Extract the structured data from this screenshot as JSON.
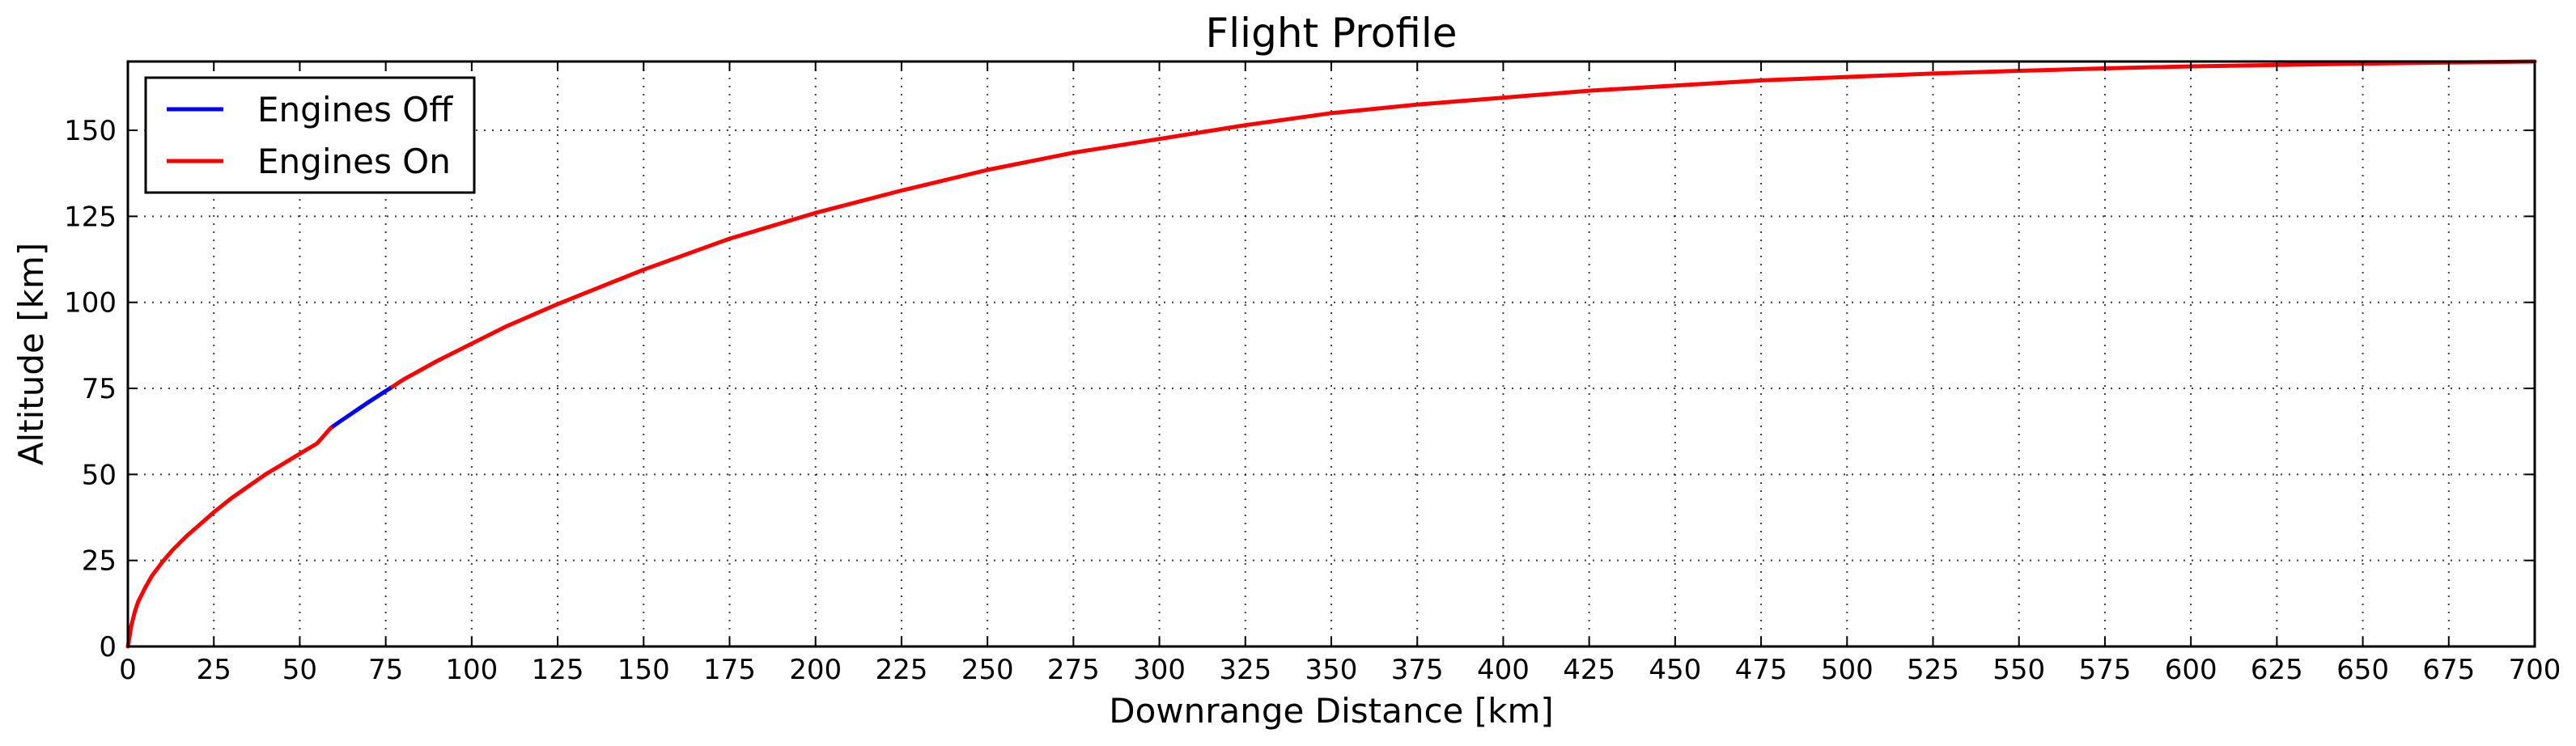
{
  "chart_data": {
    "type": "line",
    "title": "Flight Profile",
    "xlabel": "Downrange Distance [km]",
    "ylabel": "Altitude [km]",
    "xlim": [
      0,
      700
    ],
    "ylim": [
      0,
      170
    ],
    "xticks": [
      0,
      25,
      50,
      75,
      100,
      125,
      150,
      175,
      200,
      225,
      250,
      275,
      300,
      325,
      350,
      375,
      400,
      425,
      450,
      475,
      500,
      525,
      550,
      575,
      600,
      625,
      650,
      675,
      700
    ],
    "yticks": [
      0,
      25,
      50,
      75,
      100,
      125,
      150
    ],
    "grid": true,
    "legend_position": "top-left",
    "series": [
      {
        "name": "Engines Off",
        "color": "#0000ff",
        "x": [
          59,
          62,
          66,
          70,
          74,
          77
        ],
        "y": [
          63.5,
          65.6,
          68.3,
          71,
          73.6,
          75.5
        ]
      },
      {
        "name": "Engines On",
        "color": "#ff0000",
        "segments": [
          {
            "x": [
              0,
              0.5,
              1,
              2,
              3,
              5,
              7,
              10,
              13,
              17,
              21,
              25,
              30,
              35,
              40,
              45,
              50,
              55,
              59
            ],
            "y": [
              0,
              3,
              6,
              10,
              13,
              17,
              20.5,
              24.5,
              28,
              32,
              35.5,
              39,
              43,
              46.5,
              50,
              53,
              56,
              59,
              63.5
            ]
          },
          {
            "x": [
              77,
              80,
              90,
              100,
              110,
              125,
              150,
              175,
              200,
              225,
              250,
              275,
              300,
              325,
              350,
              375,
              400,
              425,
              450,
              475,
              500,
              525,
              550,
              575,
              600,
              625,
              650,
              675,
              700
            ],
            "y": [
              75.5,
              77.5,
              83,
              88,
              93,
              99.5,
              109.5,
              118.5,
              126,
              132.5,
              138.5,
              143.5,
              147.5,
              151.5,
              155,
              157.5,
              159.5,
              161.5,
              163,
              164.5,
              165.5,
              166.5,
              167.3,
              168,
              168.6,
              169,
              169.4,
              169.7,
              170
            ]
          }
        ]
      }
    ]
  }
}
